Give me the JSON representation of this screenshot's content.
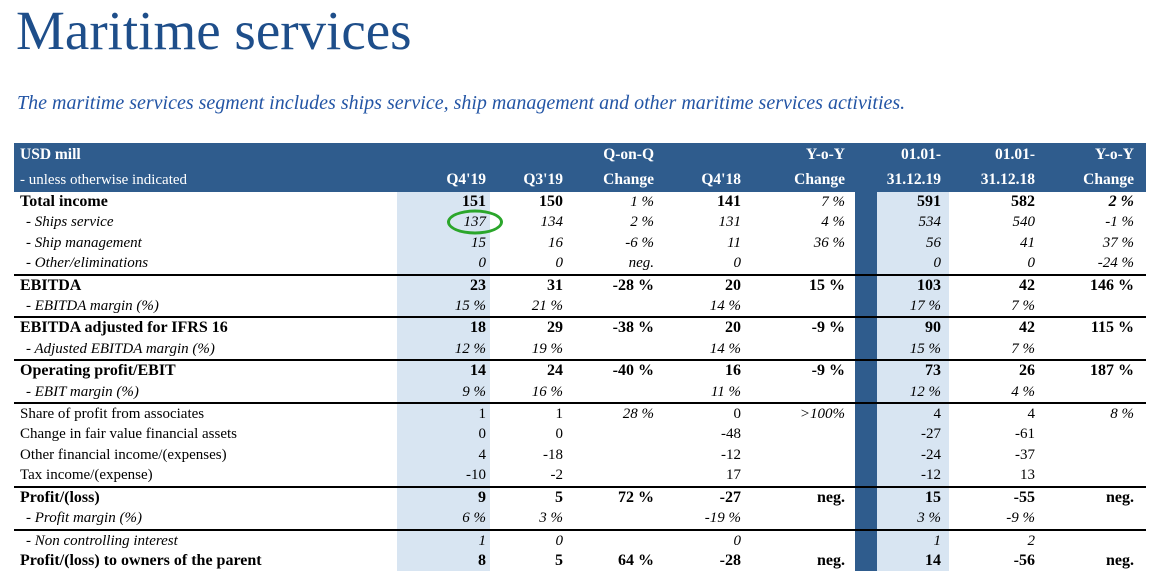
{
  "page": {
    "title": "Maritime services",
    "subtitle": "The maritime services segment includes ships service, ship management and other maritime services activities."
  },
  "colors": {
    "title_text": "#1E4E8A",
    "subtitle_text": "#2355A5",
    "header_bg": "#2F5C8D",
    "column_highlight": "#D8E5F2",
    "divider_bg": "#2F5C8D",
    "circle_green": "#2BA62B",
    "separator_line": "#000000"
  },
  "table": {
    "header": {
      "col1_line1": "USD mill",
      "col1_line2": "- unless otherwise indicated",
      "cols": [
        {
          "l1": "",
          "l2": "Q4'19"
        },
        {
          "l1": "",
          "l2": "Q3'19"
        },
        {
          "l1": "Q-on-Q",
          "l2": "Change"
        },
        {
          "l1": "",
          "l2": "Q4'18"
        },
        {
          "l1": "Y-o-Y",
          "l2": "Change"
        },
        {
          "l1": "",
          "l2": ""
        },
        {
          "l1": "01.01-",
          "l2": "31.12.19"
        },
        {
          "l1": "01.01-",
          "l2": "31.12.18"
        },
        {
          "l1": "Y-o-Y",
          "l2": "Change"
        }
      ]
    },
    "rows": [
      {
        "label": "Total income",
        "style": "bold",
        "cells": [
          "151",
          "150",
          "1 %",
          "141",
          "7 %",
          "591",
          "582",
          "2 %"
        ],
        "cell_styles": [
          "b",
          "b",
          "i",
          "b",
          "i",
          "b",
          "b",
          "bi"
        ],
        "sep": false
      },
      {
        "label": "- Ships service",
        "style": "sub",
        "cells": [
          "137",
          "134",
          "2 %",
          "131",
          "4 %",
          "534",
          "540",
          "-1 %"
        ],
        "cell_styles": [
          "i",
          "i",
          "i",
          "i",
          "i",
          "i",
          "i",
          "i"
        ],
        "sep": false,
        "circle": 0
      },
      {
        "label": "- Ship management",
        "style": "sub",
        "cells": [
          "15",
          "16",
          "-6 %",
          "11",
          "36 %",
          "56",
          "41",
          "37 %"
        ],
        "cell_styles": [
          "i",
          "i",
          "i",
          "i",
          "i",
          "i",
          "i",
          "i"
        ],
        "sep": false
      },
      {
        "label": "- Other/eliminations",
        "style": "sub",
        "cells": [
          "0",
          "0",
          "neg.",
          "0",
          "",
          "0",
          "0",
          "-24 %"
        ],
        "cell_styles": [
          "i",
          "i",
          "i",
          "i",
          "",
          "i",
          "i",
          "i"
        ],
        "sep": true
      },
      {
        "label": "EBITDA",
        "style": "bold",
        "cells": [
          "23",
          "31",
          "-28 %",
          "20",
          "15 %",
          "103",
          "42",
          "146 %"
        ],
        "cell_styles": [
          "b",
          "b",
          "b",
          "b",
          "b",
          "b",
          "b",
          "b"
        ],
        "sep": false
      },
      {
        "label": "- EBITDA margin (%)",
        "style": "sub",
        "cells": [
          "15 %",
          "21 %",
          "",
          "14 %",
          "",
          "17 %",
          "7 %",
          ""
        ],
        "cell_styles": [
          "i",
          "i",
          "",
          "i",
          "",
          "i",
          "i",
          ""
        ],
        "sep": true
      },
      {
        "label": "EBITDA adjusted for IFRS 16",
        "style": "bold",
        "cells": [
          "18",
          "29",
          "-38 %",
          "20",
          "-9 %",
          "90",
          "42",
          "115 %"
        ],
        "cell_styles": [
          "b",
          "b",
          "b",
          "b",
          "b",
          "b",
          "b",
          "b"
        ],
        "sep": false
      },
      {
        "label": "- Adjusted EBITDA margin (%)",
        "style": "sub",
        "cells": [
          "12 %",
          "19 %",
          "",
          "14 %",
          "",
          "15 %",
          "7 %",
          ""
        ],
        "cell_styles": [
          "i",
          "i",
          "",
          "i",
          "",
          "i",
          "i",
          ""
        ],
        "sep": true
      },
      {
        "label": "Operating profit/EBIT",
        "style": "bold",
        "cells": [
          "14",
          "24",
          "-40 %",
          "16",
          "-9 %",
          "73",
          "26",
          "187 %"
        ],
        "cell_styles": [
          "b",
          "b",
          "b",
          "b",
          "b",
          "b",
          "b",
          "b"
        ],
        "sep": false
      },
      {
        "label": "- EBIT margin (%)",
        "style": "sub",
        "cells": [
          "9 %",
          "16 %",
          "",
          "11 %",
          "",
          "12 %",
          "4 %",
          ""
        ],
        "cell_styles": [
          "i",
          "i",
          "",
          "i",
          "",
          "i",
          "i",
          ""
        ],
        "sep": true
      },
      {
        "label": "Share of profit from associates",
        "style": "plain",
        "cells": [
          "1",
          "1",
          "28 %",
          "0",
          ">100%",
          "4",
          "4",
          "8 %"
        ],
        "cell_styles": [
          "r",
          "r",
          "i",
          "r",
          "i",
          "r",
          "r",
          "i"
        ],
        "sep": false
      },
      {
        "label": "Change in fair value financial assets",
        "style": "plain",
        "cells": [
          "0",
          "0",
          "",
          "-48",
          "",
          "-27",
          "-61",
          ""
        ],
        "cell_styles": [
          "r",
          "r",
          "",
          "r",
          "",
          "r",
          "r",
          ""
        ],
        "sep": false
      },
      {
        "label": "Other financial income/(expenses)",
        "style": "plain",
        "cells": [
          "4",
          "-18",
          "",
          "-12",
          "",
          "-24",
          "-37",
          ""
        ],
        "cell_styles": [
          "r",
          "r",
          "",
          "r",
          "",
          "r",
          "r",
          ""
        ],
        "sep": false
      },
      {
        "label": "Tax income/(expense)",
        "style": "plain",
        "cells": [
          "-10",
          "-2",
          "",
          "17",
          "",
          "-12",
          "13",
          ""
        ],
        "cell_styles": [
          "r",
          "r",
          "",
          "r",
          "",
          "r",
          "r",
          ""
        ],
        "sep": true
      },
      {
        "label": "Profit/(loss)",
        "style": "bold",
        "cells": [
          "9",
          "5",
          "72 %",
          "-27",
          "neg.",
          "15",
          "-55",
          "neg."
        ],
        "cell_styles": [
          "b",
          "b",
          "b",
          "b",
          "b",
          "b",
          "b",
          "b"
        ],
        "sep": false
      },
      {
        "label": "- Profit margin (%)",
        "style": "sub",
        "cells": [
          "6 %",
          "3 %",
          "",
          "-19 %",
          "",
          "3 %",
          "-9 %",
          ""
        ],
        "cell_styles": [
          "i",
          "i",
          "",
          "i",
          "",
          "i",
          "i",
          ""
        ],
        "sep": true
      },
      {
        "label": "- Non controlling interest",
        "style": "sub",
        "cells": [
          "1",
          "0",
          "",
          "0",
          "",
          "1",
          "2",
          ""
        ],
        "cell_styles": [
          "i",
          "i",
          "",
          "i",
          "",
          "i",
          "i",
          ""
        ],
        "sep": false
      },
      {
        "label": "Profit/(loss) to owners of the parent",
        "style": "bold",
        "cells": [
          "8",
          "5",
          "64 %",
          "-28",
          "neg.",
          "14",
          "-56",
          "neg."
        ],
        "cell_styles": [
          "b",
          "b",
          "b",
          "b",
          "b",
          "b",
          "b",
          "b"
        ],
        "sep": false
      }
    ]
  }
}
